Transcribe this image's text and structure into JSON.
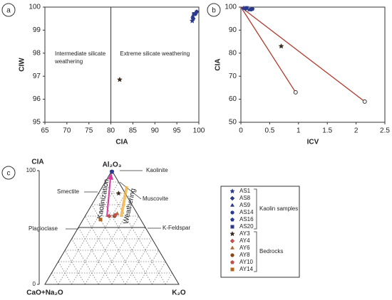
{
  "chart_data": [
    {
      "type": "scatter",
      "label": "a",
      "x_label": "CIA",
      "y_label": "CIW",
      "xlim": [
        65,
        100
      ],
      "xticks": [
        65,
        70,
        75,
        80,
        85,
        90,
        95,
        100
      ],
      "ylim": [
        95,
        100
      ],
      "yticks": [
        95,
        96,
        97,
        98,
        99,
        100
      ],
      "vlines": [
        80
      ],
      "annotations": [
        {
          "lines": [
            "Intermediate silicate",
            "weathering"
          ]
        },
        {
          "lines": [
            "Extreme silicate weathering"
          ]
        }
      ],
      "series": [
        {
          "marker": "star",
          "color": "#2b3a8c",
          "x": [
            98.5
          ],
          "values": [
            99.4
          ]
        },
        {
          "marker": "diamond",
          "color": "#2b3a8c",
          "x": [
            98.7
          ],
          "values": [
            99.5
          ]
        },
        {
          "marker": "triangle",
          "color": "#2b3a8c",
          "x": [
            98.6
          ],
          "values": [
            99.6
          ]
        },
        {
          "marker": "circle",
          "color": "#2b3a8c",
          "x": [
            99.2
          ],
          "values": [
            99.7
          ]
        },
        {
          "marker": "pentagon",
          "color": "#2b3a8c",
          "x": [
            99.5
          ],
          "values": [
            99.8
          ]
        },
        {
          "marker": "square",
          "color": "#2b3a8c",
          "x": [
            98.9
          ],
          "values": [
            99.7
          ]
        },
        {
          "marker": "star",
          "color": "#3a2a20",
          "x": [
            82
          ],
          "values": [
            96.85
          ]
        }
      ]
    },
    {
      "type": "scatter",
      "label": "b",
      "x_label": "ICV",
      "y_label": "CIA",
      "xlim": [
        0,
        2.5
      ],
      "xticks": [
        0,
        0.5,
        1,
        1.5,
        2,
        2.5
      ],
      "ylim": [
        50,
        100
      ],
      "yticks": [
        50,
        60,
        70,
        80,
        90,
        100
      ],
      "lines": [
        {
          "color": "#b03a2e",
          "x": [
            0,
            0.95
          ],
          "values": [
            100,
            63
          ]
        },
        {
          "color": "#b03a2e",
          "x": [
            0,
            2.15
          ],
          "values": [
            100,
            59
          ]
        }
      ],
      "series": [
        {
          "marker": "star",
          "color": "#2b3a8c",
          "x": [
            0.05
          ],
          "values": [
            99.5
          ]
        },
        {
          "marker": "diamond",
          "color": "#2b3a8c",
          "x": [
            0.08
          ],
          "values": [
            99.3
          ]
        },
        {
          "marker": "triangle",
          "color": "#2b3a8c",
          "x": [
            0.15
          ],
          "values": [
            98.8
          ]
        },
        {
          "marker": "circle",
          "color": "#2b3a8c",
          "x": [
            0.18
          ],
          "values": [
            99.0
          ]
        },
        {
          "marker": "pentagon",
          "color": "#2b3a8c",
          "x": [
            0.2
          ],
          "values": [
            99.2
          ]
        },
        {
          "marker": "square",
          "color": "#2b3a8c",
          "x": [
            0.1
          ],
          "values": [
            99.6
          ]
        },
        {
          "marker": "star",
          "color": "#3a2a20",
          "x": [
            0.7
          ],
          "values": [
            83
          ]
        }
      ]
    },
    {
      "type": "ternary",
      "label": "c",
      "a_label": "CIA",
      "aticks": [
        100,
        0
      ],
      "apex_top": "Al₂O₃",
      "apex_left": "CaO+Na₂O",
      "apex_right": "K₂O",
      "minerals": [
        "Kaolinite",
        "Smectite",
        "Muscovite",
        "Plagioclase",
        "K-Feldspar"
      ],
      "arrows": [
        "Kaolinization",
        "Weathering"
      ],
      "series": [
        {
          "marker": "star",
          "color": "#2b3a8c",
          "a": [
            99
          ],
          "cn": [
            0.5
          ],
          "k": [
            0.5
          ]
        },
        {
          "marker": "diamond",
          "color": "#2b3a8c",
          "a": [
            99
          ],
          "cn": [
            0.5
          ],
          "k": [
            0.5
          ]
        },
        {
          "marker": "triangle",
          "color": "#2b3a8c",
          "a": [
            99
          ],
          "cn": [
            0.5
          ],
          "k": [
            0.5
          ]
        },
        {
          "marker": "circle",
          "color": "#2b3a8c",
          "a": [
            99
          ],
          "cn": [
            0.5
          ],
          "k": [
            0.5
          ]
        },
        {
          "marker": "pentagon",
          "color": "#2b3a8c",
          "a": [
            99
          ],
          "cn": [
            0.5
          ],
          "k": [
            0.5
          ]
        },
        {
          "marker": "square",
          "color": "#2b3a8c",
          "a": [
            99
          ],
          "cn": [
            0.5
          ],
          "k": [
            0.5
          ]
        },
        {
          "marker": "star",
          "color": "#3a2a20",
          "a": [
            80
          ],
          "cn": [
            5
          ],
          "k": [
            15
          ]
        },
        {
          "marker": "diamond",
          "color": "#c0504d",
          "a": [
            60
          ],
          "cn": [
            22
          ],
          "k": [
            18
          ]
        },
        {
          "marker": "triangle",
          "color": "#b0683a",
          "a": [
            62
          ],
          "cn": [
            15
          ],
          "k": [
            23
          ]
        },
        {
          "marker": "circle",
          "color": "#8b4513",
          "a": [
            60
          ],
          "cn": [
            18
          ],
          "k": [
            22
          ]
        },
        {
          "marker": "pentagon",
          "color": "#c0504d",
          "a": [
            61
          ],
          "cn": [
            17
          ],
          "k": [
            22
          ]
        },
        {
          "marker": "square",
          "color": "#b5651d",
          "a": [
            57
          ],
          "cn": [
            30
          ],
          "k": [
            13
          ]
        }
      ]
    }
  ],
  "legend": {
    "groups": [
      {
        "label": "Kaolin samples",
        "items": [
          {
            "name": "AS1",
            "marker": "star",
            "color": "#2b3a8c"
          },
          {
            "name": "AS8",
            "marker": "diamond",
            "color": "#2b3a8c"
          },
          {
            "name": "AS9",
            "marker": "triangle",
            "color": "#2b3a8c"
          },
          {
            "name": "AS14",
            "marker": "circle",
            "color": "#2b3a8c"
          },
          {
            "name": "AS16",
            "marker": "pentagon",
            "color": "#2b3a8c"
          },
          {
            "name": "AS20",
            "marker": "square",
            "color": "#2b3a8c"
          }
        ]
      },
      {
        "label": "Bedrocks",
        "items": [
          {
            "name": "AY3",
            "marker": "star",
            "color": "#3a2a20"
          },
          {
            "name": "AY4",
            "marker": "diamond",
            "color": "#c0504d"
          },
          {
            "name": "AY6",
            "marker": "triangle",
            "color": "#b0683a"
          },
          {
            "name": "AY8",
            "marker": "circle",
            "color": "#8b4513"
          },
          {
            "name": "AY10",
            "marker": "pentagon",
            "color": "#c0504d"
          },
          {
            "name": "AY14",
            "marker": "square",
            "color": "#b5651d"
          }
        ]
      }
    ]
  }
}
